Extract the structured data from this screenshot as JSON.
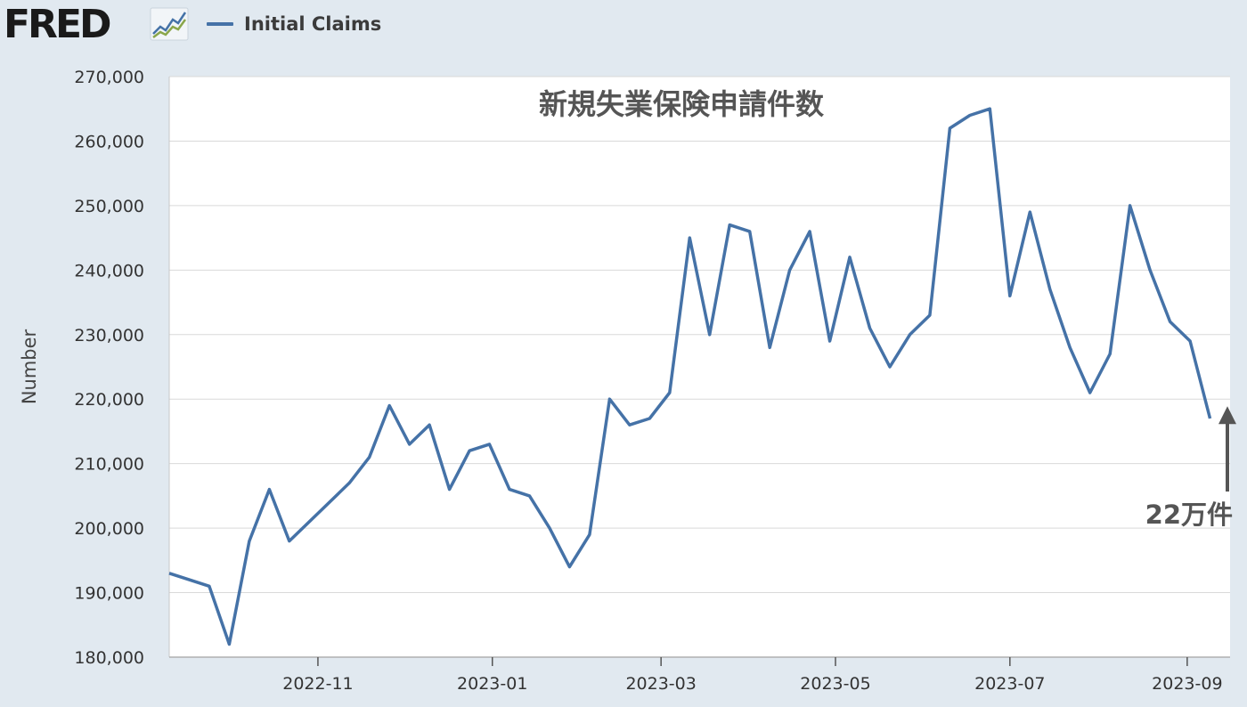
{
  "header": {
    "logo_text": "FRED",
    "logo_icon": "trend-graph-icon",
    "legend_label": "Initial Claims"
  },
  "colors": {
    "background": "#e1e9f0",
    "plot_background": "#ffffff",
    "series": "#4572a7",
    "annotation": "#555555"
  },
  "chart_data": {
    "type": "line",
    "title": "新規失業保険申請件数",
    "ylabel": "Number",
    "xlabel": "",
    "ylim": [
      180000,
      270000
    ],
    "yticks": [
      180000,
      190000,
      200000,
      210000,
      220000,
      230000,
      240000,
      250000,
      260000,
      270000
    ],
    "ytick_labels": [
      "180,000",
      "190,000",
      "200,000",
      "210,000",
      "220,000",
      "230,000",
      "240,000",
      "250,000",
      "260,000",
      "270,000"
    ],
    "xlim": [
      "2022-09-10",
      "2023-09-16"
    ],
    "xticks": [
      "2022-11-01",
      "2023-01-01",
      "2023-03-01",
      "2023-05-01",
      "2023-07-01",
      "2023-09-01"
    ],
    "xtick_labels": [
      "2022-11",
      "2023-01",
      "2023-03",
      "2023-05",
      "2023-07",
      "2023-09"
    ],
    "grid": true,
    "legend": "top-left",
    "series": [
      {
        "name": "Initial Claims",
        "x": [
          "2022-09-10",
          "2022-09-17",
          "2022-09-24",
          "2022-10-01",
          "2022-10-08",
          "2022-10-15",
          "2022-10-22",
          "2022-10-29",
          "2022-11-05",
          "2022-11-12",
          "2022-11-19",
          "2022-11-26",
          "2022-12-03",
          "2022-12-10",
          "2022-12-17",
          "2022-12-24",
          "2022-12-31",
          "2023-01-07",
          "2023-01-14",
          "2023-01-21",
          "2023-01-28",
          "2023-02-04",
          "2023-02-11",
          "2023-02-18",
          "2023-02-25",
          "2023-03-04",
          "2023-03-11",
          "2023-03-18",
          "2023-03-25",
          "2023-04-01",
          "2023-04-08",
          "2023-04-15",
          "2023-04-22",
          "2023-04-29",
          "2023-05-06",
          "2023-05-13",
          "2023-05-20",
          "2023-05-27",
          "2023-06-03",
          "2023-06-10",
          "2023-06-17",
          "2023-06-24",
          "2023-07-01",
          "2023-07-08",
          "2023-07-15",
          "2023-07-22",
          "2023-07-29",
          "2023-08-05",
          "2023-08-12",
          "2023-08-19",
          "2023-08-26",
          "2023-09-02",
          "2023-09-09"
        ],
        "values": [
          193000,
          192000,
          191000,
          182000,
          198000,
          206000,
          198000,
          201000,
          204000,
          207000,
          211000,
          219000,
          213000,
          216000,
          206000,
          212000,
          213000,
          206000,
          205000,
          200000,
          194000,
          199000,
          220000,
          216000,
          217000,
          221000,
          245000,
          230000,
          247000,
          246000,
          228000,
          240000,
          246000,
          229000,
          242000,
          231000,
          225000,
          230000,
          233000,
          262000,
          264000,
          265000,
          236000,
          249000,
          237000,
          228000,
          221000,
          227000,
          250000,
          240000,
          232000,
          229000,
          217000
        ]
      }
    ],
    "annotations": [
      {
        "text": "22万件",
        "x": "2023-09-16",
        "y": 220000,
        "arrow": "up"
      }
    ]
  }
}
